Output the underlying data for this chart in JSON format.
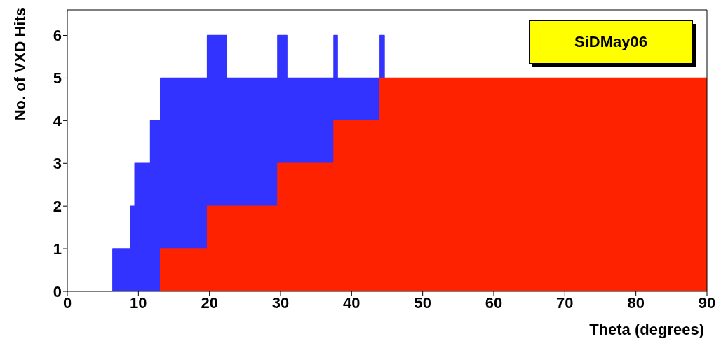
{
  "chart_data": {
    "type": "area",
    "xlabel": "Theta (degrees)",
    "ylabel": "No. of VXD Hits",
    "xlim": [
      0,
      90
    ],
    "xticks": [
      0,
      10,
      20,
      30,
      40,
      50,
      60,
      70,
      80,
      90
    ],
    "ylim": [
      0,
      6.6
    ],
    "yticks": [
      0,
      1,
      2,
      3,
      4,
      5,
      6
    ],
    "series": [
      {
        "color": "#3333ff",
        "x": [
          0,
          6.4,
          6.4,
          8.9,
          8.9,
          9.5,
          9.5,
          11.7,
          11.7,
          13.1,
          13.1,
          19.7,
          19.7,
          22.4,
          22.4,
          29.6,
          29.6,
          30.9,
          30.9,
          37.5,
          37.5,
          38.0,
          38.0,
          44.0,
          44.0,
          44.6,
          44.6
        ],
        "values": [
          0,
          0,
          1,
          1,
          2,
          2,
          3,
          3,
          4,
          4,
          5,
          5,
          6,
          6,
          5,
          5,
          6,
          6,
          5,
          5,
          6,
          6,
          5,
          5,
          6,
          6,
          5
        ]
      },
      {
        "color": "#ff2200",
        "x": [
          13.1,
          13.1,
          19.7,
          19.7,
          29.6,
          29.6,
          37.5,
          37.5,
          44.0,
          44.0,
          90
        ],
        "values": [
          0,
          1,
          1,
          2,
          2,
          3,
          3,
          4,
          4,
          5,
          5
        ]
      }
    ],
    "annotations": [
      "SiDMay06"
    ],
    "grid": false
  }
}
